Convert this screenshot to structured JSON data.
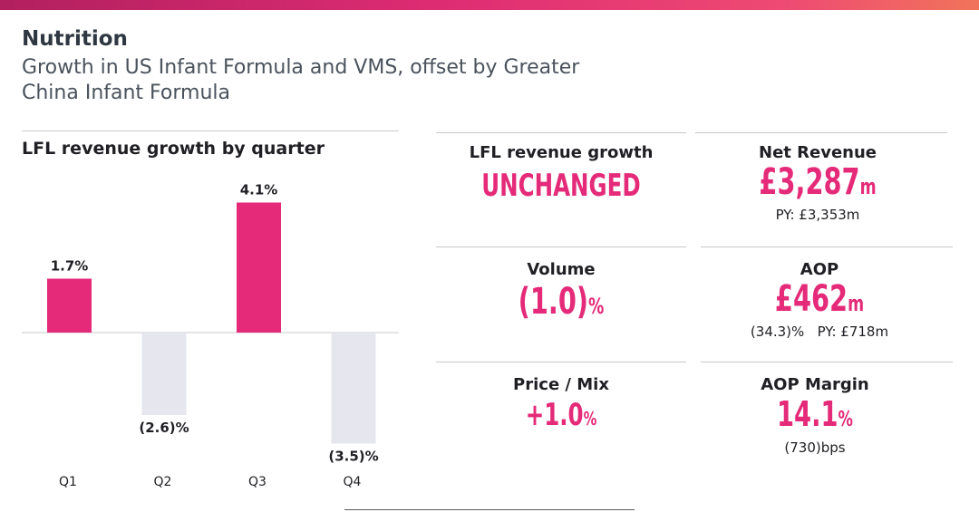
{
  "header": {
    "section_title": "Nutrition",
    "subtitle": "Growth in US Infant Formula and VMS, offset by Greater China Infant Formula"
  },
  "colors": {
    "accent": "#e42a78",
    "negative_bar": "#e6e7ee",
    "text": "#1f1f24"
  },
  "chart_data": {
    "type": "bar",
    "title": "LFL revenue growth by quarter",
    "categories": [
      "Q1",
      "Q2",
      "Q3",
      "Q4"
    ],
    "values": [
      1.7,
      -2.6,
      4.1,
      -3.5
    ],
    "value_labels": [
      "1.7%",
      "(2.6)%",
      "4.1%",
      "(3.5)%"
    ],
    "unit": "%",
    "xlabel": "",
    "ylabel": "",
    "ylim": [
      -4.1,
      4.1
    ],
    "grid": false,
    "legend": "none"
  },
  "kpis": {
    "lfl_growth": {
      "label": "LFL revenue growth",
      "value": "UNCHANGED"
    },
    "net_revenue": {
      "label": "Net Revenue",
      "value": "£3,287",
      "unit": "m",
      "sub": "PY: £3,353m"
    },
    "volume": {
      "label": "Volume",
      "value": "(1.0)",
      "unit": "%"
    },
    "aop": {
      "label": "AOP",
      "value": "£462",
      "unit": "m",
      "sub": "(34.3)%   PY: £718m"
    },
    "price_mix": {
      "label": "Price / Mix",
      "value": "+1.0",
      "unit": "%"
    },
    "aop_margin": {
      "label": "AOP Margin",
      "value": "14.1",
      "unit": "%",
      "sub": "(730)bps"
    }
  }
}
